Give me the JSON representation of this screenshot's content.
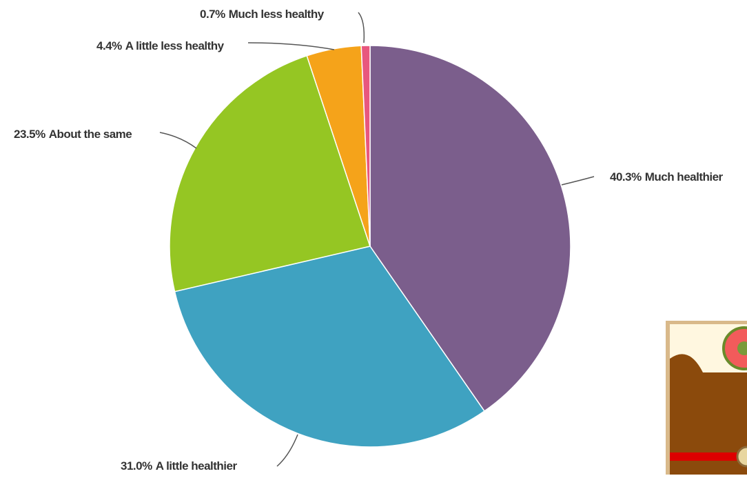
{
  "chart_data": {
    "type": "pie",
    "categories": [
      "Much healthier",
      "A little healthier",
      "About the same",
      "A little less healthy",
      "Much less healthy"
    ],
    "values": [
      40.3,
      31.0,
      23.5,
      4.4,
      0.7
    ],
    "value_labels": [
      "40.3%",
      "31.0%",
      "23.5%",
      "4.4%",
      "0.7%"
    ],
    "colors": [
      "#7b5e8c",
      "#3fa2c1",
      "#95c623",
      "#f5a31a",
      "#e8577e"
    ]
  }
}
